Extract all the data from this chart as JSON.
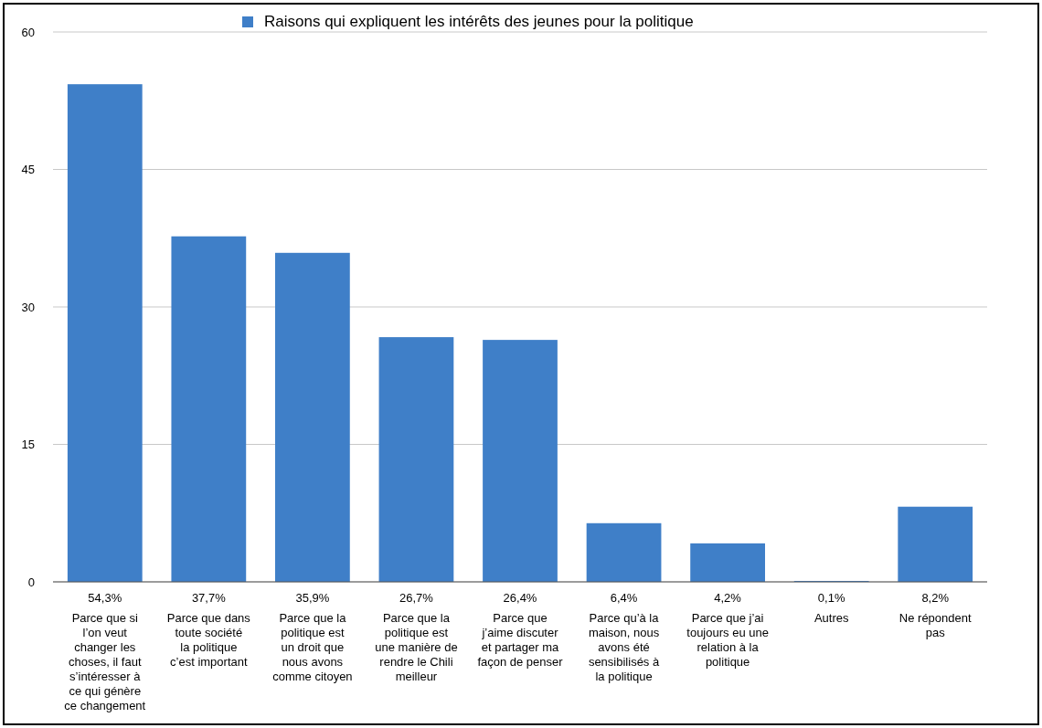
{
  "chart_data": {
    "type": "bar",
    "categories": [
      "Parce que si l’on veut changer les choses, il faut s’intéresser à ce qui génère ce changement",
      "Parce que dans toute société la politique c’est important",
      "Parce que la politique est un droit que nous avons comme citoyen",
      "Parce que la politique est une manière de rendre le Chili meilleur",
      "Parce que j’aime discuter et partager ma façon de penser",
      "Parce qu’à la maison, nous avons été sensibilisés à la politique",
      "Parce que j’ai toujours eu une relation à la politique",
      "Autres",
      "Ne répondent pas"
    ],
    "series": [
      {
        "name": "Raisons qui expliquent les intérêts des jeunes pour la politique",
        "color": "#3f7fc8",
        "values": [
          54.3,
          37.7,
          35.9,
          26.7,
          26.4,
          6.4,
          4.2,
          0.1,
          8.2
        ],
        "value_labels": [
          "54,3%",
          "37,7%",
          "35,9%",
          "26,7%",
          "26,4%",
          "6,4%",
          "4,2%",
          "0,1%",
          "8,2%"
        ]
      }
    ],
    "ylim": [
      0,
      60
    ],
    "yticks": [
      0,
      15,
      30,
      45,
      60
    ],
    "grid": "y",
    "legend": "top"
  }
}
